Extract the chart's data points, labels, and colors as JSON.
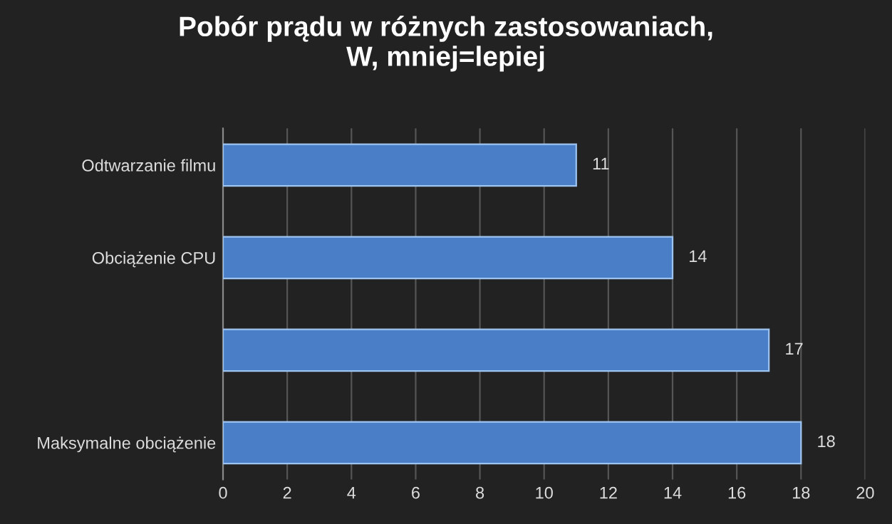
{
  "chart_data": {
    "type": "bar",
    "orientation": "horizontal",
    "title": "Pobór prądu w różnych zastosowaniach,\nW, mniej=lepiej",
    "categories": [
      "Odtwarzanie filmu",
      "Obciążenie CPU",
      null,
      "Maksymalne obciążenie"
    ],
    "values": [
      11,
      14,
      17,
      18
    ],
    "color": "#4a7ec6",
    "xlim": [
      0,
      20
    ],
    "xticks": [
      0,
      2,
      4,
      6,
      8,
      10,
      12,
      14,
      16,
      18,
      20
    ],
    "grid": "x",
    "data_labels": true
  }
}
